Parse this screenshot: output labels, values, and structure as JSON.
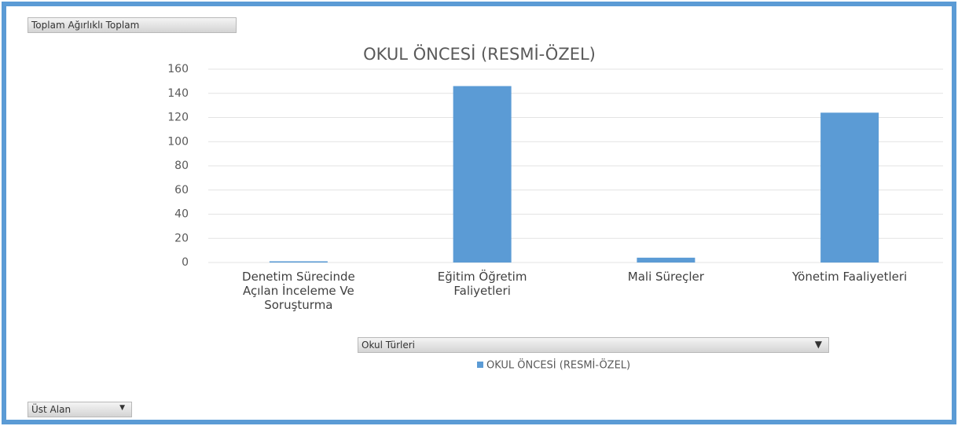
{
  "chart_data": {
    "type": "bar",
    "title": "OKUL ÖNCESİ (RESMİ-ÖZEL)",
    "categories": [
      "Denetim Sürecinde Açılan İnceleme Ve Soruşturma",
      "Eğitim Öğretim Faliyetleri",
      "Mali Süreçler",
      "Yönetim Faaliyetleri"
    ],
    "series": [
      {
        "name": "OKUL ÖNCESİ (RESMİ-ÖZEL)",
        "color": "#5b9bd5",
        "values": [
          1,
          146,
          4,
          124
        ]
      }
    ],
    "ylim": [
      0,
      160
    ],
    "yticks": [
      0,
      20,
      40,
      60,
      80,
      100,
      120,
      140,
      160
    ],
    "grid": true,
    "value_field": "Toplam Ağırlıklı Toplam",
    "axis_field": "Okul Türleri",
    "filter_field": "Üst Alan"
  }
}
